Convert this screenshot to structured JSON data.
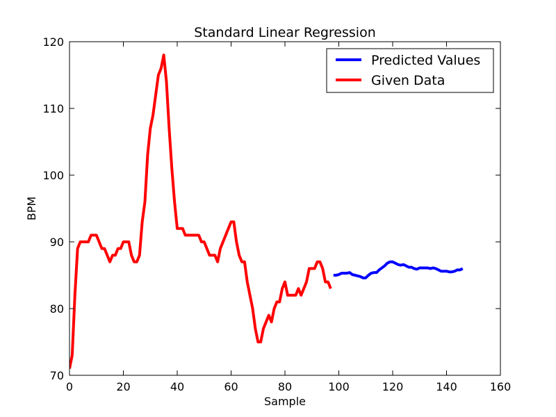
{
  "chart_data": {
    "type": "line",
    "title": "Standard Linear Regression",
    "xlabel": "Sample",
    "ylabel": "BPM",
    "xlim": [
      0,
      160
    ],
    "ylim": [
      70,
      120
    ],
    "xticks": [
      0,
      20,
      40,
      60,
      80,
      100,
      120,
      140,
      160
    ],
    "yticks": [
      70,
      80,
      90,
      100,
      110,
      120
    ],
    "grid": false,
    "legend_position": "top-right",
    "series": [
      {
        "name": "Predicted Values",
        "color": "#0000ff",
        "x": [
          98,
          99,
          100,
          101,
          102,
          103,
          104,
          105,
          106,
          107,
          108,
          109,
          110,
          111,
          112,
          113,
          114,
          115,
          116,
          117,
          118,
          119,
          120,
          121,
          122,
          123,
          124,
          125,
          126,
          127,
          128,
          129,
          130,
          131,
          132,
          133,
          134,
          135,
          136,
          137,
          138,
          139,
          140,
          141,
          142,
          143,
          144,
          145,
          146
        ],
        "y": [
          85.0,
          85.0,
          85.1,
          85.3,
          85.3,
          85.3,
          85.4,
          85.1,
          85.0,
          84.9,
          84.8,
          84.6,
          84.6,
          85.0,
          85.3,
          85.4,
          85.4,
          85.8,
          86.1,
          86.4,
          86.8,
          87.0,
          87.0,
          86.8,
          86.6,
          86.5,
          86.6,
          86.4,
          86.2,
          86.2,
          86.0,
          85.9,
          86.1,
          86.1,
          86.1,
          86.1,
          86.0,
          86.1,
          86.0,
          85.8,
          85.6,
          85.6,
          85.6,
          85.5,
          85.5,
          85.6,
          85.8,
          85.8,
          86.0
        ]
      },
      {
        "name": "Given Data",
        "color": "#ff0000",
        "x": [
          0,
          1,
          2,
          3,
          4,
          5,
          6,
          7,
          8,
          9,
          10,
          11,
          12,
          13,
          14,
          15,
          16,
          17,
          18,
          19,
          20,
          21,
          22,
          23,
          24,
          25,
          26,
          27,
          28,
          29,
          30,
          31,
          32,
          33,
          34,
          35,
          36,
          37,
          38,
          39,
          40,
          41,
          42,
          43,
          44,
          45,
          46,
          47,
          48,
          49,
          50,
          51,
          52,
          53,
          54,
          55,
          56,
          57,
          58,
          59,
          60,
          61,
          62,
          63,
          64,
          65,
          66,
          67,
          68,
          69,
          70,
          71,
          72,
          73,
          74,
          75,
          76,
          77,
          78,
          79,
          80,
          81,
          82,
          83,
          84,
          85,
          86,
          87,
          88,
          89,
          90,
          91,
          92,
          93,
          94,
          95,
          96,
          97
        ],
        "y": [
          71,
          73,
          82,
          89,
          90,
          90,
          90,
          90,
          91,
          91,
          91,
          90,
          89,
          89,
          88,
          87,
          88,
          88,
          89,
          89,
          90,
          90,
          90,
          88,
          87,
          87,
          88,
          93,
          96,
          103,
          107,
          109,
          112,
          115,
          116,
          118,
          114,
          107,
          101,
          96,
          92,
          92,
          92,
          91,
          91,
          91,
          91,
          91,
          91,
          90,
          90,
          89,
          88,
          88,
          88,
          87,
          89,
          90,
          91,
          92,
          93,
          93,
          90,
          88,
          87,
          87,
          84,
          82,
          80,
          77,
          75,
          75,
          77,
          78,
          79,
          78,
          80,
          81,
          81,
          83,
          84,
          82,
          82,
          82,
          82,
          83,
          82,
          83,
          84,
          86,
          86,
          86,
          87,
          87,
          86,
          84,
          84,
          83
        ]
      }
    ]
  }
}
